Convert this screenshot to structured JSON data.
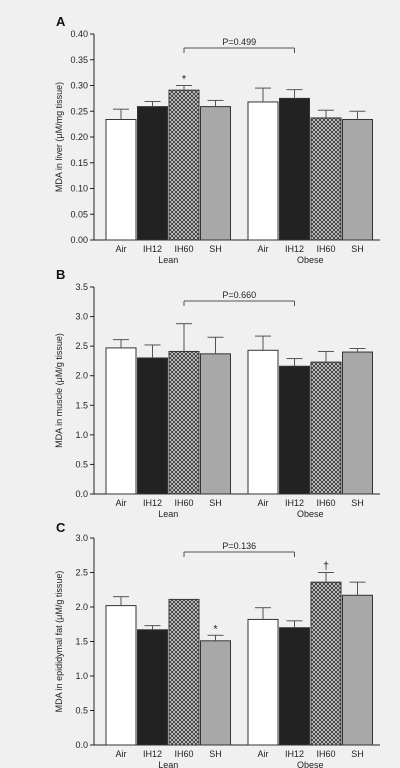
{
  "chart_data": [
    {
      "type": "bar",
      "panel": "A",
      "ylabel": "MDA in liver (μM/mg tissue)",
      "ylim": [
        0,
        0.4
      ],
      "yticks": [
        "0.00",
        "0.05",
        "0.10",
        "0.15",
        "0.20",
        "0.25",
        "0.30",
        "0.35",
        "0.40"
      ],
      "groups": [
        "Lean",
        "Obese"
      ],
      "categories": [
        "Air",
        "IH12",
        "IH60",
        "SH"
      ],
      "values": {
        "Lean": [
          0.234,
          0.259,
          0.291,
          0.259
        ],
        "Obese": [
          0.268,
          0.275,
          0.237,
          0.234
        ]
      },
      "errors": {
        "Lean": [
          0.02,
          0.01,
          0.009,
          0.012
        ],
        "Obese": [
          0.027,
          0.017,
          0.015,
          0.016
        ]
      },
      "annotations": {
        "Lean": [
          "",
          "",
          "*",
          ""
        ],
        "Obese": [
          "",
          "",
          "",
          ""
        ]
      },
      "comparison": {
        "label": "P=0.499",
        "from": [
          0,
          2
        ],
        "to": [
          1,
          1
        ]
      }
    },
    {
      "type": "bar",
      "panel": "B",
      "ylabel": "MDA in muscle (μM/g tissue)",
      "ylim": [
        0,
        3.5
      ],
      "yticks": [
        "0.0",
        "0.5",
        "1.0",
        "1.5",
        "2.0",
        "2.5",
        "3.0",
        "3.5"
      ],
      "groups": [
        "Lean",
        "Obese"
      ],
      "categories": [
        "Air",
        "IH12",
        "IH60",
        "SH"
      ],
      "values": {
        "Lean": [
          2.47,
          2.3,
          2.41,
          2.37
        ],
        "Obese": [
          2.43,
          2.16,
          2.23,
          2.4
        ]
      },
      "errors": {
        "Lean": [
          0.14,
          0.22,
          0.47,
          0.28
        ],
        "Obese": [
          0.24,
          0.13,
          0.18,
          0.06
        ]
      },
      "annotations": {
        "Lean": [
          "",
          "",
          "",
          ""
        ],
        "Obese": [
          "",
          "",
          "",
          ""
        ]
      },
      "comparison": {
        "label": "P=0.660",
        "from": [
          0,
          2
        ],
        "to": [
          1,
          1
        ]
      }
    },
    {
      "type": "bar",
      "panel": "C",
      "ylabel": "MDA in epididymal fat (μM/g tissue)",
      "ylim": [
        0,
        3.0
      ],
      "yticks": [
        "0.0",
        "0.5",
        "1.0",
        "1.5",
        "2.0",
        "2.5",
        "3.0"
      ],
      "groups": [
        "Lean",
        "Obese"
      ],
      "categories": [
        "Air",
        "IH12",
        "IH60",
        "SH"
      ],
      "values": {
        "Lean": [
          2.02,
          1.67,
          2.11,
          1.51
        ],
        "Obese": [
          1.82,
          1.7,
          2.36,
          2.17
        ]
      },
      "errors": {
        "Lean": [
          0.13,
          0.06,
          0.0,
          0.08
        ],
        "Obese": [
          0.17,
          0.1,
          0.14,
          0.19
        ]
      },
      "annotations": {
        "Lean": [
          "",
          "",
          "",
          "*"
        ],
        "Obese": [
          "",
          "",
          "†",
          ""
        ]
      },
      "comparison": {
        "label": "P=0.136",
        "from": [
          0,
          2
        ],
        "to": [
          1,
          1
        ]
      }
    }
  ],
  "bar_styles": {
    "Air": "#ffffff",
    "IH12": "#222222",
    "IH60": "hatch",
    "SH": "#a8a8a8"
  }
}
